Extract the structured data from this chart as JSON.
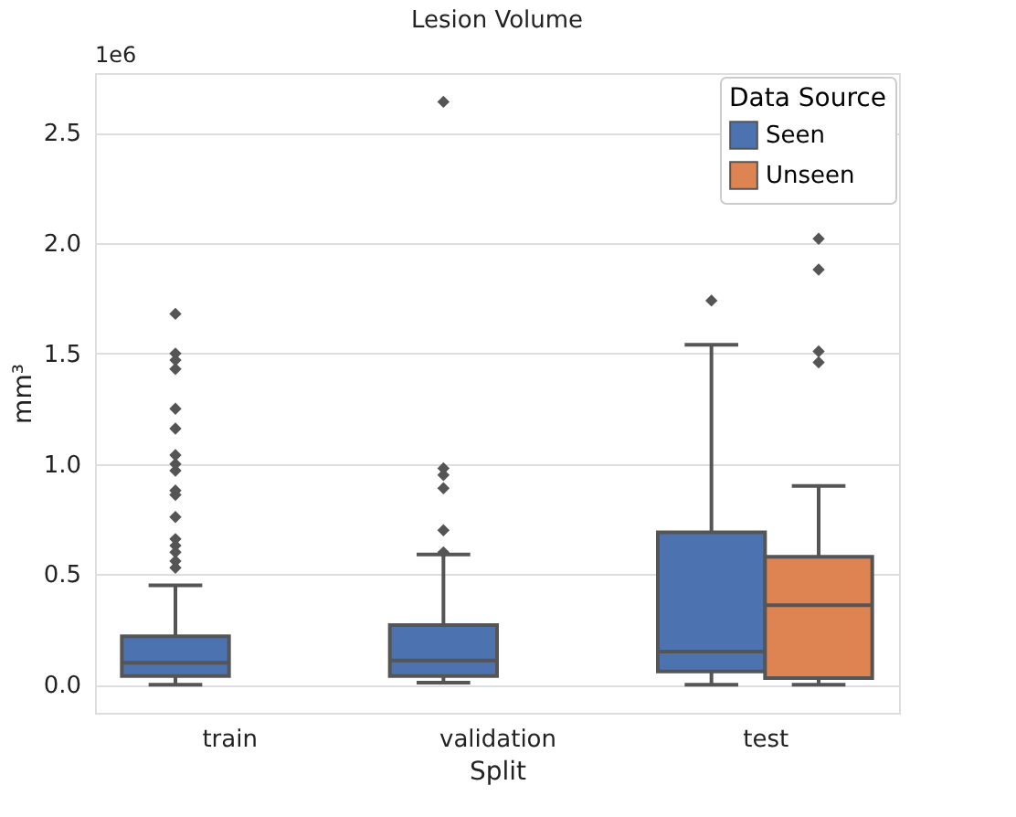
{
  "chart_data": {
    "type": "box",
    "title": "Lesion Volume",
    "xlabel": "Split",
    "ylabel": "mm³",
    "legend_title": "Data Source",
    "annotations": [
      "1e6"
    ],
    "categories": [
      "train",
      "validation",
      "test"
    ],
    "ylim": [
      -0.127,
      2.77
    ],
    "yticks": [
      {
        "value": 0,
        "label": "0.0"
      },
      {
        "value": 0.5,
        "label": "0.5"
      },
      {
        "value": 1,
        "label": "1.0"
      },
      {
        "value": 1.5,
        "label": "1.5"
      },
      {
        "value": 2,
        "label": "2.0"
      },
      {
        "value": 2.5,
        "label": "2.5"
      }
    ],
    "grid": "y",
    "legend": "top right",
    "marker": "diamond",
    "series": [
      {
        "name": "Seen",
        "color": "#4c72b0",
        "boxes": [
          {
            "low": 0.0,
            "q1": 0.04,
            "median": 0.1,
            "q3": 0.22,
            "high": 0.45,
            "outliers": [
              1.68,
              1.5,
              1.47,
              1.43,
              1.25,
              1.16,
              1.04,
              1.0,
              0.97,
              0.88,
              0.86,
              0.76,
              0.66,
              0.63,
              0.6,
              0.56,
              0.53
            ]
          },
          {
            "low": 0.01,
            "q1": 0.04,
            "median": 0.11,
            "q3": 0.27,
            "high": 0.59,
            "outliers": [
              2.64,
              0.98,
              0.95,
              0.89,
              0.7,
              0.6
            ]
          },
          {
            "low": 0.0,
            "q1": 0.06,
            "median": 0.15,
            "q3": 0.69,
            "high": 1.54,
            "outliers": [
              1.74
            ]
          }
        ]
      },
      {
        "name": "Unseen",
        "color": "#dd8452",
        "boxes": [
          null,
          null,
          {
            "low": 0.0,
            "q1": 0.03,
            "median": 0.36,
            "q3": 0.58,
            "high": 0.9,
            "outliers": [
              2.02,
              1.88,
              1.51,
              1.46
            ]
          }
        ]
      }
    ]
  }
}
